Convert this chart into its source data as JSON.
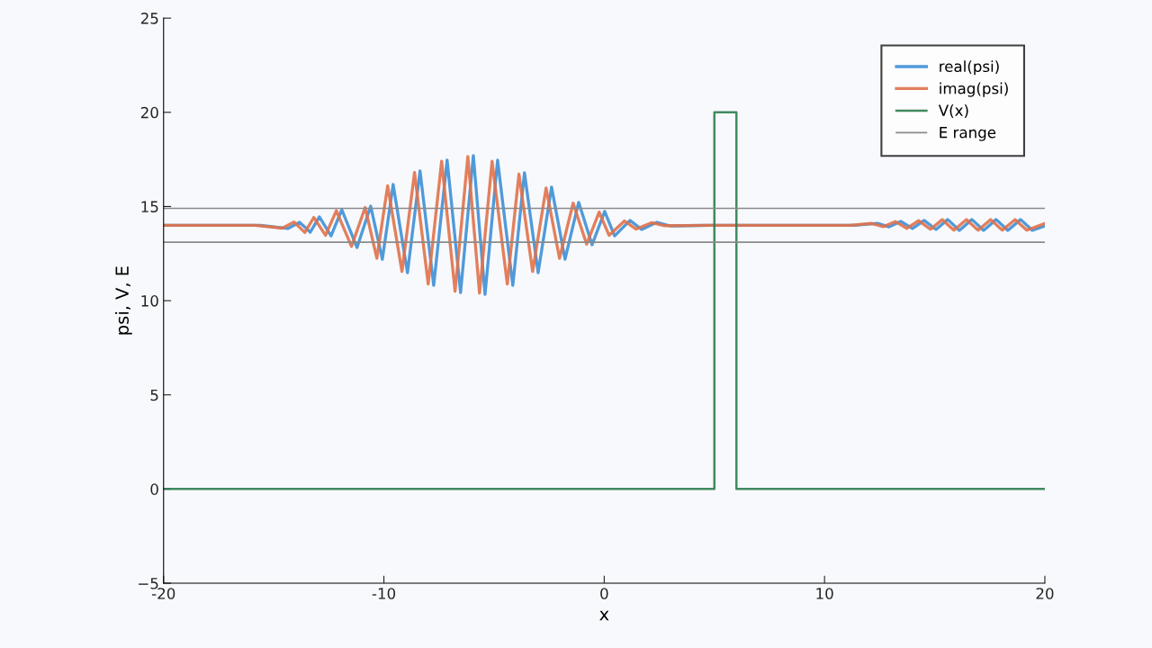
{
  "chart_data": {
    "type": "line",
    "xlabel": "x",
    "ylabel": "psi, V, E",
    "xlim": [
      -20,
      20
    ],
    "xticks": [
      -20,
      -10,
      0,
      10,
      20
    ],
    "ylim": [
      -5,
      25
    ],
    "yticks": [
      {
        "value": -5,
        "label": "−5"
      },
      0,
      5,
      10,
      15,
      20,
      25
    ],
    "grid": false,
    "legend": "top right",
    "line_style": "solid",
    "marker": "none",
    "series": [
      {
        "name": "real(psi)",
        "color": "#3d8fd6",
        "x": [
          -20,
          -15.59,
          -14.36,
          -13.83,
          -13.34,
          -12.93,
          -12.4,
          -11.91,
          -11.22,
          -10.6,
          -10.07,
          -9.58,
          -8.93,
          -8.36,
          -7.74,
          -7.13,
          -6.52,
          -5.94,
          -5.41,
          -4.84,
          -4.15,
          -3.62,
          -3.0,
          -2.39,
          -1.78,
          -1.16,
          -0.55,
          0.02,
          0.47,
          1.17,
          1.7,
          2.39,
          3.0,
          4.84,
          11.38,
          12.4,
          12.93,
          13.46,
          13.99,
          14.52,
          15.06,
          15.59,
          16.12,
          16.69,
          17.22,
          17.79,
          18.32,
          18.9,
          19.43,
          20
        ],
        "values": [
          14.0,
          14.0,
          13.83,
          14.16,
          13.64,
          14.45,
          13.44,
          14.83,
          12.82,
          15.02,
          12.2,
          16.17,
          11.48,
          16.89,
          10.81,
          17.46,
          10.43,
          17.7,
          10.33,
          17.46,
          10.81,
          16.79,
          11.48,
          16.03,
          12.2,
          15.22,
          12.97,
          14.74,
          13.44,
          14.26,
          13.78,
          14.16,
          13.97,
          14.0,
          14.0,
          14.11,
          13.92,
          14.21,
          13.83,
          14.26,
          13.78,
          14.31,
          13.73,
          14.31,
          13.73,
          14.31,
          13.73,
          14.31,
          13.73,
          13.97
        ]
      },
      {
        "name": "imag(psi)",
        "color": "#e0714a",
        "x": [
          -20,
          -15.84,
          -14.61,
          -14.08,
          -13.59,
          -13.18,
          -12.65,
          -12.16,
          -11.47,
          -10.85,
          -10.32,
          -9.83,
          -9.18,
          -8.61,
          -7.99,
          -7.38,
          -6.77,
          -6.19,
          -5.66,
          -5.09,
          -4.4,
          -3.87,
          -3.25,
          -2.64,
          -2.03,
          -1.41,
          -0.8,
          -0.23,
          0.22,
          0.92,
          1.45,
          2.14,
          2.75,
          4.59,
          11.13,
          12.15,
          12.68,
          13.21,
          13.74,
          14.27,
          14.81,
          15.34,
          15.87,
          16.44,
          16.97,
          17.54,
          18.07,
          18.65,
          19.18,
          20
        ],
        "values": [
          14.0,
          14.0,
          13.85,
          14.18,
          13.62,
          14.42,
          13.47,
          14.78,
          12.88,
          14.95,
          12.25,
          16.1,
          11.55,
          16.8,
          10.88,
          17.4,
          10.5,
          17.65,
          10.4,
          17.4,
          10.88,
          16.72,
          11.55,
          15.98,
          12.25,
          15.18,
          13.0,
          14.7,
          13.47,
          14.23,
          13.8,
          14.14,
          13.98,
          14.0,
          14.0,
          14.1,
          13.93,
          14.2,
          13.84,
          14.25,
          13.79,
          14.3,
          13.74,
          14.3,
          13.74,
          14.3,
          13.74,
          14.3,
          13.74,
          14.1
        ]
      },
      {
        "name": "V(x)",
        "color": "#2e7d4f",
        "x": [
          -20,
          5,
          5,
          6,
          6,
          20
        ],
        "values": [
          0,
          0,
          20,
          20,
          0,
          0
        ]
      }
    ],
    "ref_lines": [
      {
        "axis": "y",
        "value": 14.9,
        "label": "E range",
        "color": "#8a8a8a"
      },
      {
        "axis": "y",
        "value": 13.1,
        "color": "#8a8a8a"
      }
    ]
  }
}
